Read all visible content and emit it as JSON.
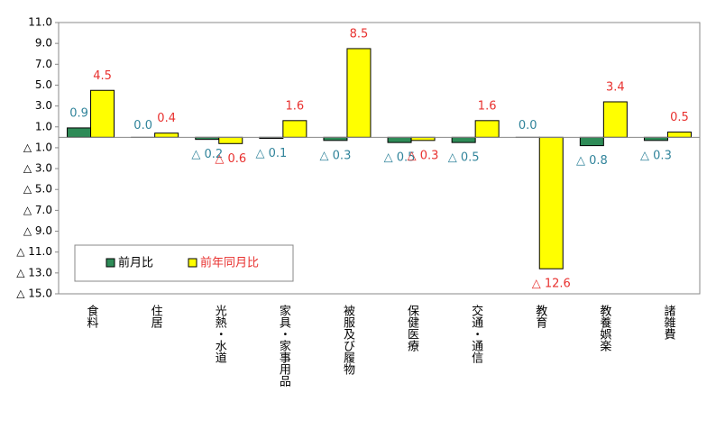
{
  "chart_data": {
    "type": "bar",
    "categories": [
      "食料",
      "住居",
      "光熱・水道",
      "家具・家事用品",
      "被服及び履物",
      "保健医療",
      "交通・通信",
      "教育",
      "教養娯楽",
      "諸雑費"
    ],
    "series": [
      {
        "name": "前月比",
        "color": "#2e8b57",
        "label_color": "#31849b",
        "values": [
          0.9,
          0.0,
          -0.2,
          -0.1,
          -0.3,
          -0.5,
          -0.5,
          0.0,
          -0.8,
          -0.3
        ],
        "value_labels": [
          "0.9",
          "0.0",
          "△ 0.2",
          "△ 0.1",
          "△ 0.3",
          "△ 0.5",
          "△ 0.5",
          "0.0",
          "△ 0.8",
          "△ 0.3"
        ]
      },
      {
        "name": "前年同月比",
        "color": "#ffff00",
        "label_color": "#e8312f",
        "values": [
          4.5,
          0.4,
          -0.6,
          1.6,
          8.5,
          -0.3,
          1.6,
          -12.6,
          3.4,
          0.5
        ],
        "value_labels": [
          "4.5",
          "0.4",
          "△ 0.6",
          "1.6",
          "8.5",
          "△ 0.3",
          "1.6",
          "△ 12.6",
          "3.4",
          "0.5"
        ]
      }
    ],
    "ylim": [
      -15,
      11
    ],
    "yticks": [
      {
        "value": 11,
        "label": "11.0"
      },
      {
        "value": 9,
        "label": "9.0"
      },
      {
        "value": 7,
        "label": "7.0"
      },
      {
        "value": 5,
        "label": "5.0"
      },
      {
        "value": 3,
        "label": "3.0"
      },
      {
        "value": 1,
        "label": "1.0"
      },
      {
        "value": -1,
        "label": "△ 1.0"
      },
      {
        "value": -3,
        "label": "△ 3.0"
      },
      {
        "value": -5,
        "label": "△ 5.0"
      },
      {
        "value": -7,
        "label": "△ 7.0"
      },
      {
        "value": -9,
        "label": "△ 9.0"
      },
      {
        "value": -11,
        "label": "△ 11.0"
      },
      {
        "value": -13,
        "label": "△ 13.0"
      },
      {
        "value": -15,
        "label": "△ 15.0"
      }
    ],
    "legend": "lower-left"
  }
}
